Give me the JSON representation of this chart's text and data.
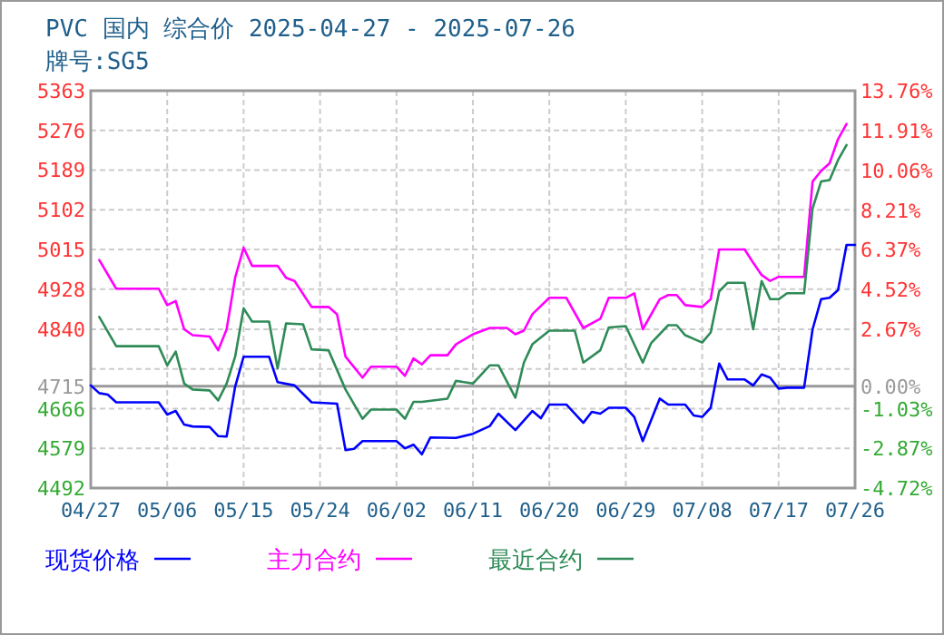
{
  "chart_data": {
    "type": "line",
    "title": "PVC 国内 综合价 2025-04-27 - 2025-07-26",
    "subtitle": "牌号:SG5",
    "xlim": [
      "2025-04-27",
      "2025-07-26"
    ],
    "xticks": [
      {
        "value": "2025-04-27",
        "label": "04/27"
      },
      {
        "value": "2025-05-06",
        "label": "05/06"
      },
      {
        "value": "2025-05-15",
        "label": "05/15"
      },
      {
        "value": "2025-05-24",
        "label": "05/24"
      },
      {
        "value": "2025-06-02",
        "label": "06/02"
      },
      {
        "value": "2025-06-11",
        "label": "06/11"
      },
      {
        "value": "2025-06-20",
        "label": "06/20"
      },
      {
        "value": "2025-06-29",
        "label": "06/29"
      },
      {
        "value": "2025-07-08",
        "label": "07/08"
      },
      {
        "value": "2025-07-17",
        "label": "07/17"
      },
      {
        "value": "2025-07-26",
        "label": "07/26"
      }
    ],
    "ylim": [
      4492,
      5363
    ],
    "yticks": [
      5363,
      5276,
      5189,
      5102,
      5015,
      4928,
      4840,
      {
        "value": 4753,
        "label": null
      },
      4666,
      4579,
      4492
    ],
    "y2lim": [
      -4.72,
      13.76
    ],
    "y2ticks": [
      {
        "value": 13.76,
        "label": "13.76%"
      },
      {
        "value": 11.91,
        "label": "11.91%"
      },
      {
        "value": 10.06,
        "label": "10.06%"
      },
      {
        "value": 8.21,
        "label": "8.21%"
      },
      {
        "value": 6.37,
        "label": "6.37%"
      },
      {
        "value": 4.52,
        "label": "4.52%"
      },
      {
        "value": 2.67,
        "label": "2.67%"
      },
      {
        "value": 0,
        "label": "0.00%"
      },
      {
        "value": -1.03,
        "label": "-1.03%"
      },
      {
        "value": -2.87,
        "label": "-2.87%"
      },
      {
        "value": -4.72,
        "label": "-4.72%"
      }
    ],
    "grid": true,
    "legend": "bottom",
    "ref_lines": [
      {
        "axis": "y",
        "value": 4715,
        "label": "4715",
        "color": "#999999"
      }
    ],
    "series": [
      {
        "name": "现货价格",
        "color": "#0000ff",
        "x": [
          "2025-04-27",
          "2025-04-28",
          "2025-04-29",
          "2025-04-30",
          "2025-05-05",
          "2025-05-06",
          "2025-05-07",
          "2025-05-08",
          "2025-05-09",
          "2025-05-11",
          "2025-05-12",
          "2025-05-13",
          "2025-05-14",
          "2025-05-15",
          "2025-05-18",
          "2025-05-19",
          "2025-05-21",
          "2025-05-23",
          "2025-05-26",
          "2025-05-27",
          "2025-05-28",
          "2025-05-29",
          "2025-06-02",
          "2025-06-03",
          "2025-06-04",
          "2025-06-05",
          "2025-06-06",
          "2025-06-09",
          "2025-06-11",
          "2025-06-13",
          "2025-06-14",
          "2025-06-16",
          "2025-06-18",
          "2025-06-19",
          "2025-06-20",
          "2025-06-22",
          "2025-06-24",
          "2025-06-25",
          "2025-06-26",
          "2025-06-27",
          "2025-06-29",
          "2025-06-30",
          "2025-07-01",
          "2025-07-03",
          "2025-07-04",
          "2025-07-06",
          "2025-07-07",
          "2025-07-08",
          "2025-07-09",
          "2025-07-10",
          "2025-07-11",
          "2025-07-13",
          "2025-07-14",
          "2025-07-15",
          "2025-07-16",
          "2025-07-17",
          "2025-07-18",
          "2025-07-20",
          "2025-07-21",
          "2025-07-22",
          "2025-07-23",
          "2025-07-24",
          "2025-07-25",
          "2025-07-26"
        ],
        "values": [
          4717,
          4700,
          4697,
          4680,
          4680,
          4653,
          4661,
          4631,
          4627,
          4626,
          4606,
          4605,
          4714,
          4780,
          4780,
          4724,
          4717,
          4680,
          4677,
          4575,
          4578,
          4595,
          4595,
          4579,
          4587,
          4566,
          4603,
          4602,
          4611,
          4628,
          4655,
          4619,
          4661,
          4645,
          4675,
          4675,
          4635,
          4659,
          4655,
          4668,
          4668,
          4648,
          4595,
          4688,
          4675,
          4675,
          4651,
          4648,
          4668,
          4765,
          4730,
          4730,
          4717,
          4741,
          4734,
          4710,
          4712,
          4712,
          4840,
          4906,
          4909,
          4926,
          5025,
          5025
        ]
      },
      {
        "name": "主力合约",
        "color": "#ff00ff",
        "x": [
          "2025-04-28",
          "2025-04-30",
          "2025-05-05",
          "2025-05-06",
          "2025-05-07",
          "2025-05-08",
          "2025-05-09",
          "2025-05-11",
          "2025-05-12",
          "2025-05-13",
          "2025-05-14",
          "2025-05-15",
          "2025-05-16",
          "2025-05-19",
          "2025-05-20",
          "2025-05-21",
          "2025-05-23",
          "2025-05-25",
          "2025-05-26",
          "2025-05-27",
          "2025-05-29",
          "2025-05-30",
          "2025-06-02",
          "2025-06-03",
          "2025-06-04",
          "2025-06-05",
          "2025-06-06",
          "2025-06-08",
          "2025-06-09",
          "2025-06-11",
          "2025-06-13",
          "2025-06-15",
          "2025-06-16",
          "2025-06-17",
          "2025-06-18",
          "2025-06-20",
          "2025-06-22",
          "2025-06-24",
          "2025-06-26",
          "2025-06-27",
          "2025-06-29",
          "2025-06-30",
          "2025-07-01",
          "2025-07-03",
          "2025-07-04",
          "2025-07-05",
          "2025-07-06",
          "2025-07-08",
          "2025-07-09",
          "2025-07-10",
          "2025-07-13",
          "2025-07-14",
          "2025-07-15",
          "2025-07-16",
          "2025-07-17",
          "2025-07-20",
          "2025-07-21",
          "2025-07-22",
          "2025-07-23",
          "2025-07-24",
          "2025-07-25"
        ],
        "values": [
          4992,
          4929,
          4929,
          4893,
          4902,
          4840,
          4827,
          4824,
          4794,
          4840,
          4953,
          5019,
          4979,
          4979,
          4953,
          4946,
          4889,
          4889,
          4873,
          4780,
          4734,
          4758,
          4758,
          4738,
          4776,
          4763,
          4783,
          4783,
          4807,
          4829,
          4843,
          4843,
          4829,
          4837,
          4873,
          4909,
          4909,
          4843,
          4863,
          4909,
          4909,
          4919,
          4840,
          4906,
          4915,
          4915,
          4893,
          4889,
          4906,
          5015,
          5015,
          4986,
          4959,
          4946,
          4955,
          4955,
          5164,
          5187,
          5204,
          5257,
          5290
        ]
      },
      {
        "name": "最近合约",
        "color": "#2e8b57",
        "x": [
          "2025-04-28",
          "2025-04-30",
          "2025-05-05",
          "2025-05-06",
          "2025-05-07",
          "2025-05-08",
          "2025-05-09",
          "2025-05-11",
          "2025-05-12",
          "2025-05-13",
          "2025-05-14",
          "2025-05-15",
          "2025-05-16",
          "2025-05-18",
          "2025-05-19",
          "2025-05-20",
          "2025-05-22",
          "2025-05-23",
          "2025-05-25",
          "2025-05-27",
          "2025-05-29",
          "2025-05-30",
          "2025-06-02",
          "2025-06-03",
          "2025-06-04",
          "2025-06-05",
          "2025-06-08",
          "2025-06-09",
          "2025-06-11",
          "2025-06-13",
          "2025-06-14",
          "2025-06-16",
          "2025-06-17",
          "2025-06-18",
          "2025-06-20",
          "2025-06-23",
          "2025-06-24",
          "2025-06-26",
          "2025-06-27",
          "2025-06-29",
          "2025-07-01",
          "2025-07-02",
          "2025-07-04",
          "2025-07-05",
          "2025-07-06",
          "2025-07-08",
          "2025-07-09",
          "2025-07-10",
          "2025-07-11",
          "2025-07-13",
          "2025-07-14",
          "2025-07-15",
          "2025-07-16",
          "2025-07-17",
          "2025-07-18",
          "2025-07-20",
          "2025-07-21",
          "2025-07-22",
          "2025-07-23",
          "2025-07-24",
          "2025-07-25"
        ],
        "values": [
          4867,
          4803,
          4803,
          4761,
          4791,
          4721,
          4708,
          4706,
          4684,
          4721,
          4780,
          4886,
          4857,
          4857,
          4754,
          4853,
          4851,
          4796,
          4794,
          4708,
          4644,
          4664,
          4664,
          4644,
          4681,
          4681,
          4688,
          4727,
          4721,
          4761,
          4761,
          4690,
          4767,
          4807,
          4837,
          4837,
          4767,
          4794,
          4844,
          4847,
          4767,
          4810,
          4849,
          4849,
          4827,
          4811,
          4833,
          4923,
          4942,
          4942,
          4840,
          4946,
          4906,
          4906,
          4919,
          4919,
          5105,
          5164,
          5167,
          5211,
          5244
        ]
      }
    ]
  }
}
